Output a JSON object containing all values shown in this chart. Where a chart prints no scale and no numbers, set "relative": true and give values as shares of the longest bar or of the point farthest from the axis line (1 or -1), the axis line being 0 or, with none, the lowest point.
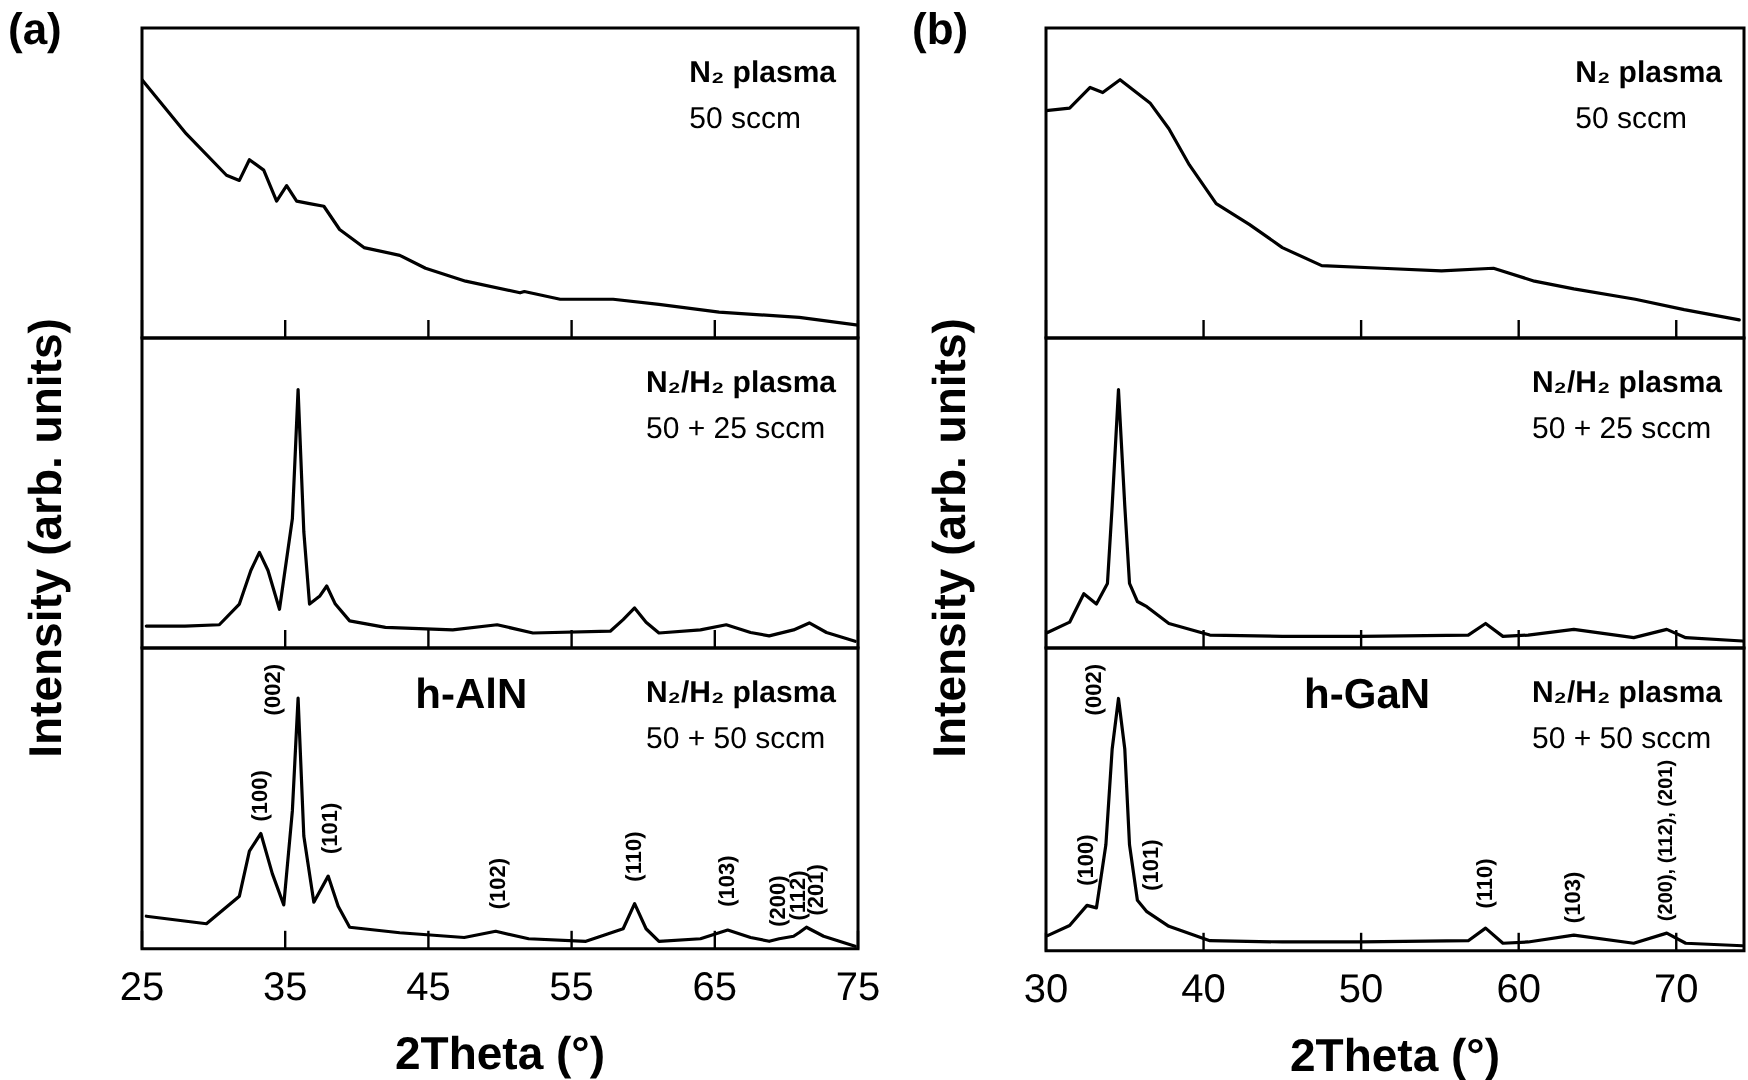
{
  "chart_data": [
    {
      "type": "line",
      "title": "(a)",
      "relative": true,
      "marker": "none",
      "tick_labels": false,
      "xlim": [
        25,
        75
      ],
      "xticks": [
        25,
        35,
        45,
        55,
        65,
        75
      ],
      "annotations": [
        "N₂ plasma",
        "50 sccm"
      ],
      "x": [
        25,
        28.1,
        30.9,
        31.8,
        32.5,
        33.5,
        34.4,
        35.1,
        35.8,
        36.7,
        37.7,
        38.8,
        40.5,
        43.0,
        44.8,
        47.6,
        51.4,
        51.7,
        54.2,
        57.9,
        61.1,
        65.3,
        70.9,
        75
      ],
      "series": [
        {
          "color": "#000000",
          "values": [
            1,
            0.79,
            0.63,
            0.61,
            0.69,
            0.65,
            0.53,
            0.59,
            0.53,
            0.52,
            0.51,
            0.42,
            0.35,
            0.32,
            0.27,
            0.22,
            0.175,
            0.18,
            0.15,
            0.15,
            0.13,
            0.1,
            0.08,
            0.05
          ]
        }
      ]
    },
    {
      "type": "line",
      "ylabel": "Intensity (arb. units)",
      "relative": true,
      "marker": "none",
      "tick_labels": false,
      "xlim": [
        25,
        75
      ],
      "xticks": [
        25,
        35,
        45,
        55,
        65,
        75
      ],
      "annotations": [
        "N₂/H₂ plasma",
        "50 + 25 sccm"
      ],
      "x": [
        25.3,
        28,
        30.4,
        31.8,
        32.6,
        33.2,
        33.8,
        34.6,
        35.5,
        35.9,
        36.3,
        36.7,
        37.4,
        37.9,
        38.5,
        39.5,
        42,
        46.7,
        49.8,
        52.3,
        57.7,
        58.6,
        59.4,
        60.2,
        61.1,
        64,
        65.8,
        67.5,
        68.8,
        70.5,
        71.6,
        72.8,
        74.8
      ],
      "series": [
        {
          "color": "#000000",
          "values": [
            0.085,
            0.085,
            0.09,
            0.17,
            0.3,
            0.37,
            0.3,
            0.15,
            0.5,
            1,
            0.45,
            0.17,
            0.2,
            0.24,
            0.17,
            0.105,
            0.08,
            0.07,
            0.09,
            0.058,
            0.065,
            0.11,
            0.155,
            0.1,
            0.058,
            0.07,
            0.09,
            0.06,
            0.047,
            0.07,
            0.097,
            0.06,
            0.026
          ]
        }
      ]
    },
    {
      "type": "line",
      "subtitle": "h-AlN",
      "xlabel": "2Theta (°)",
      "relative": true,
      "marker": "none",
      "tick_labels": "x",
      "xlim": [
        25,
        75
      ],
      "xticks": [
        25,
        35,
        45,
        55,
        65,
        75
      ],
      "annotations": [
        "N₂/H₂ plasma",
        "50 + 50 sccm",
        {
          "text": "(100)",
          "x": 33.3,
          "y": 0.46
        },
        {
          "text": "(002)",
          "x": 35.9,
          "y": 1
        },
        {
          "text": "(101)",
          "x": 38.2,
          "y": 0.33
        },
        {
          "text": "(102)",
          "x": 49.9,
          "y": 0.11
        },
        {
          "text": "(110)",
          "x": 59.4,
          "y": 0.22
        },
        {
          "text": "(103)",
          "x": 65.9,
          "y": 0.12
        },
        {
          "text": "(200)",
          "x": 69.5,
          "y": 0.04
        },
        {
          "text": "(112)",
          "x": 70.9,
          "y": 0.065
        },
        {
          "text": "(201)",
          "x": 72.1,
          "y": 0.085
        }
      ],
      "x": [
        25.3,
        29.5,
        31.8,
        32.5,
        33.3,
        34.1,
        34.9,
        35.5,
        35.9,
        36.3,
        37,
        38,
        38.7,
        39.5,
        43,
        47.5,
        49.7,
        52,
        56,
        58.6,
        59.4,
        60.2,
        61.1,
        64,
        65.9,
        67.5,
        68.8,
        69.5,
        70.5,
        70.9,
        71.4,
        72.6,
        74.8
      ],
      "series": [
        {
          "color": "#000000",
          "values": [
            0.13,
            0.1,
            0.21,
            0.39,
            0.46,
            0.3,
            0.175,
            0.55,
            1,
            0.45,
            0.186,
            0.29,
            0.17,
            0.086,
            0.064,
            0.045,
            0.07,
            0.04,
            0.03,
            0.08,
            0.18,
            0.08,
            0.03,
            0.04,
            0.075,
            0.045,
            0.03,
            0.04,
            0.05,
            0.065,
            0.086,
            0.05,
            0.01
          ]
        }
      ]
    },
    {
      "type": "line",
      "title": "(b)",
      "relative": true,
      "marker": "none",
      "tick_labels": false,
      "xlim": [
        30,
        74.3
      ],
      "xticks": [
        30,
        40,
        50,
        60,
        70
      ],
      "annotations": [
        "N₂ plasma",
        "50 sccm"
      ],
      "x": [
        30,
        31.5,
        32.8,
        33.6,
        34.7,
        36.6,
        37.8,
        39.1,
        40.8,
        42.9,
        45,
        47.5,
        51.3,
        55.1,
        58.4,
        61,
        63.5,
        67.4,
        70.5,
        74
      ],
      "series": [
        {
          "color": "#000000",
          "values": [
            0.88,
            0.89,
            0.97,
            0.95,
            1,
            0.91,
            0.81,
            0.67,
            0.52,
            0.44,
            0.35,
            0.28,
            0.27,
            0.26,
            0.27,
            0.22,
            0.19,
            0.15,
            0.11,
            0.07
          ]
        }
      ]
    },
    {
      "type": "line",
      "ylabel": "Intensity (arb. units)",
      "relative": true,
      "marker": "none",
      "tick_labels": false,
      "xlim": [
        30,
        74.3
      ],
      "xticks": [
        30,
        40,
        50,
        60,
        70
      ],
      "annotations": [
        "N₂/H₂ plasma",
        "50 + 25 sccm"
      ],
      "x": [
        30.1,
        31.5,
        32.4,
        33.2,
        33.9,
        34.2,
        34.6,
        35,
        35.3,
        35.8,
        36.4,
        37.8,
        40.4,
        45,
        50,
        56.8,
        57.9,
        59,
        60.6,
        63.5,
        67.3,
        69.4,
        70.6,
        74.2
      ],
      "series": [
        {
          "color": "#000000",
          "values": [
            0.06,
            0.1,
            0.21,
            0.17,
            0.25,
            0.55,
            1,
            0.55,
            0.25,
            0.18,
            0.16,
            0.095,
            0.05,
            0.045,
            0.045,
            0.05,
            0.095,
            0.045,
            0.05,
            0.072,
            0.04,
            0.072,
            0.04,
            0.027
          ]
        }
      ]
    },
    {
      "type": "line",
      "subtitle": "h-GaN",
      "xlabel": "2Theta (°)",
      "relative": true,
      "marker": "none",
      "tick_labels": "x",
      "xlim": [
        30,
        74.3
      ],
      "xticks": [
        30,
        40,
        50,
        60,
        70
      ],
      "annotations": [
        "N₂/H₂ plasma",
        "50 + 50 sccm",
        {
          "text": "(100)",
          "x": 32.6,
          "y": 0.21
        },
        {
          "text": "(002)",
          "x": 34.6,
          "y": 1
        },
        {
          "text": "(101)",
          "x": 36.7,
          "y": 0.19
        },
        {
          "text": "(110)",
          "x": 57.9,
          "y": 0.12
        },
        {
          "text": "(103)",
          "x": 63.5,
          "y": 0.062
        },
        {
          "text": "(200), (112), (201)",
          "x": 69.4,
          "y": 0.07
        }
      ],
      "x": [
        30.1,
        31.5,
        32.6,
        33.2,
        33.8,
        34.2,
        34.6,
        35,
        35.3,
        35.8,
        36.4,
        37.8,
        40.4,
        45,
        50,
        56.8,
        57.9,
        59,
        60.6,
        63.5,
        67.3,
        69.4,
        70.6,
        74.2
      ],
      "series": [
        {
          "color": "#000000",
          "values": [
            0.06,
            0.1,
            0.18,
            0.17,
            0.42,
            0.8,
            1,
            0.8,
            0.42,
            0.2,
            0.155,
            0.097,
            0.04,
            0.035,
            0.035,
            0.04,
            0.09,
            0.03,
            0.035,
            0.062,
            0.03,
            0.07,
            0.03,
            0.02
          ]
        }
      ]
    }
  ]
}
